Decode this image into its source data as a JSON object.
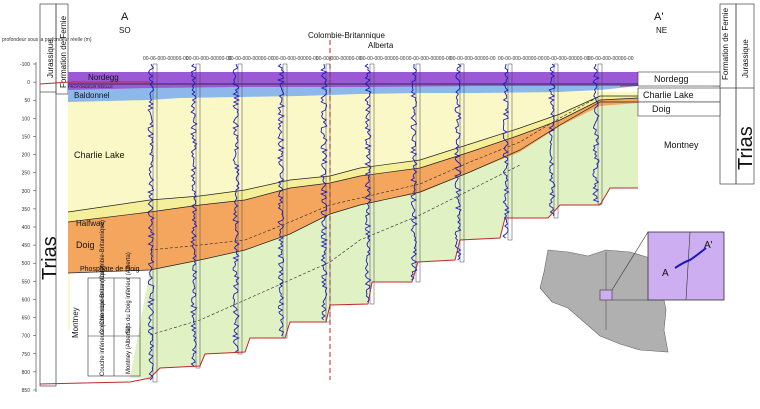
{
  "section_start": {
    "letter": "A",
    "direction": "SO"
  },
  "section_end": {
    "letter": "A'",
    "direction": "NE"
  },
  "border_left": "Colombie-Britannique",
  "border_right": "Alberta",
  "depth_axis": {
    "title": "profondeur sous la profondeur réelle (m)",
    "ticks": [
      "-100",
      "0",
      "50",
      "100",
      "150",
      "200",
      "250",
      "300",
      "350",
      "400",
      "450",
      "500",
      "550",
      "600",
      "650",
      "700",
      "750",
      "800",
      "850"
    ]
  },
  "left_columns": {
    "period": "Jurassique",
    "formation": "Formation de Fernie",
    "system": "Trias"
  },
  "right_columns": {
    "formation": "Formation de Fernie",
    "period": "Jurassique",
    "system": "Trias"
  },
  "datum_label": "PROFONDEUR RÉELLE",
  "units_left": {
    "nordegg": "Nordegg",
    "baldonnel": "Baldonnel",
    "charlie_lake": "Charlie Lake",
    "halfway": "Halfway",
    "doig": "Doig",
    "doig_phosphate": "Phosphate de Doig",
    "montney": "Montney",
    "upper_montney_bc": "Couche supérieure (Colombie-Britannique)",
    "doig_silts": "Silts du Doig inférieur (Alberta)",
    "lower_montney_bc": "Couche inférieure (Colombie-Britannique)",
    "montney_ab": "Montney (Alberta)"
  },
  "units_right": {
    "nordegg": "Nordegg",
    "charlie_lake": "Charlie Lake",
    "doig": "Doig",
    "montney": "Montney"
  },
  "wells": [
    "00-06-000-00000-00",
    "00-00-000-00000-00",
    "00-00-000-00000-00",
    "00-00-000-00000-00",
    "00-00-000-00000-00",
    "00-00-000-00000-00",
    "00-00-000-00000-00",
    "00-00-000-00000-00",
    "00-00-000-00000-00",
    "00-00-000-00000-00",
    "00-00-000-00000-00"
  ],
  "inset_map": {
    "start": "A",
    "end": "A'"
  },
  "colors": {
    "nordegg": "#9b59d6",
    "baldonnel": "#8fb8ea",
    "charlie_lake": "#fbf8c8",
    "halfway": "#f4ef98",
    "doig": "#f4a65e",
    "montney": "#e0f2c4",
    "gamma_log": "#1a1ab8",
    "erosion": "#c0282c",
    "inset_purple": "#cdaef0"
  }
}
